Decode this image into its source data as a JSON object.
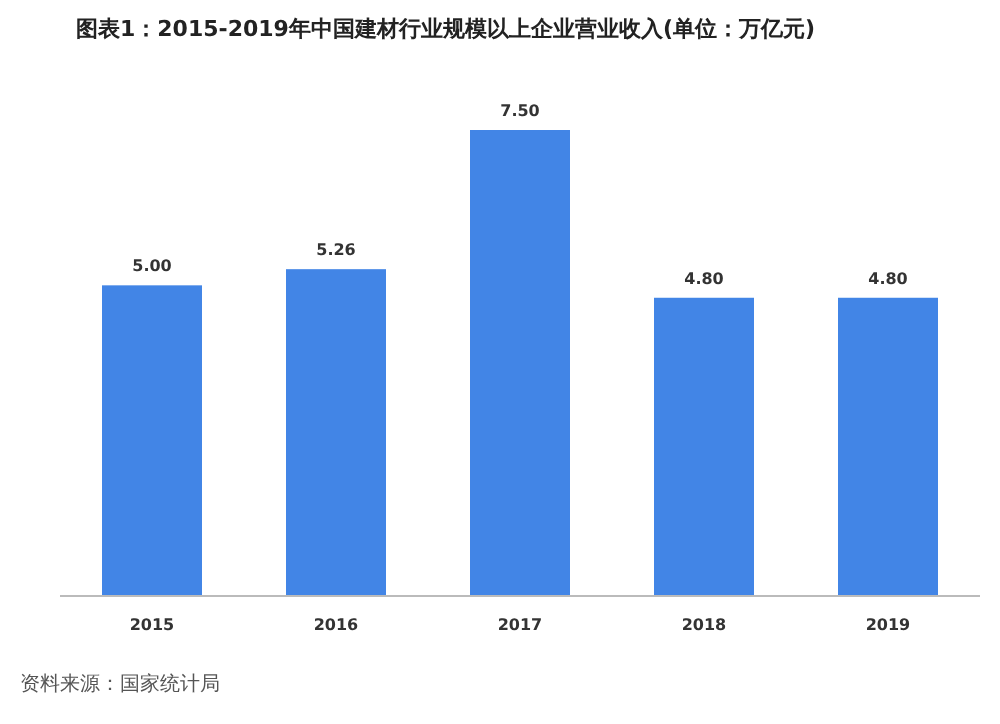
{
  "chart_data": {
    "type": "bar",
    "title": "图表1：2015-2019年中国建材行业规模以上企业营业收入(单位：万亿元)",
    "categories": [
      "2015",
      "2016",
      "2017",
      "2018",
      "2019"
    ],
    "values": [
      5.0,
      5.26,
      7.5,
      4.8,
      4.8
    ],
    "value_labels": [
      "5.00",
      "5.26",
      "7.50",
      "4.80",
      "4.80"
    ],
    "color": "#4285e6",
    "annotations": [
      "资料来源：国家统计局"
    ]
  }
}
